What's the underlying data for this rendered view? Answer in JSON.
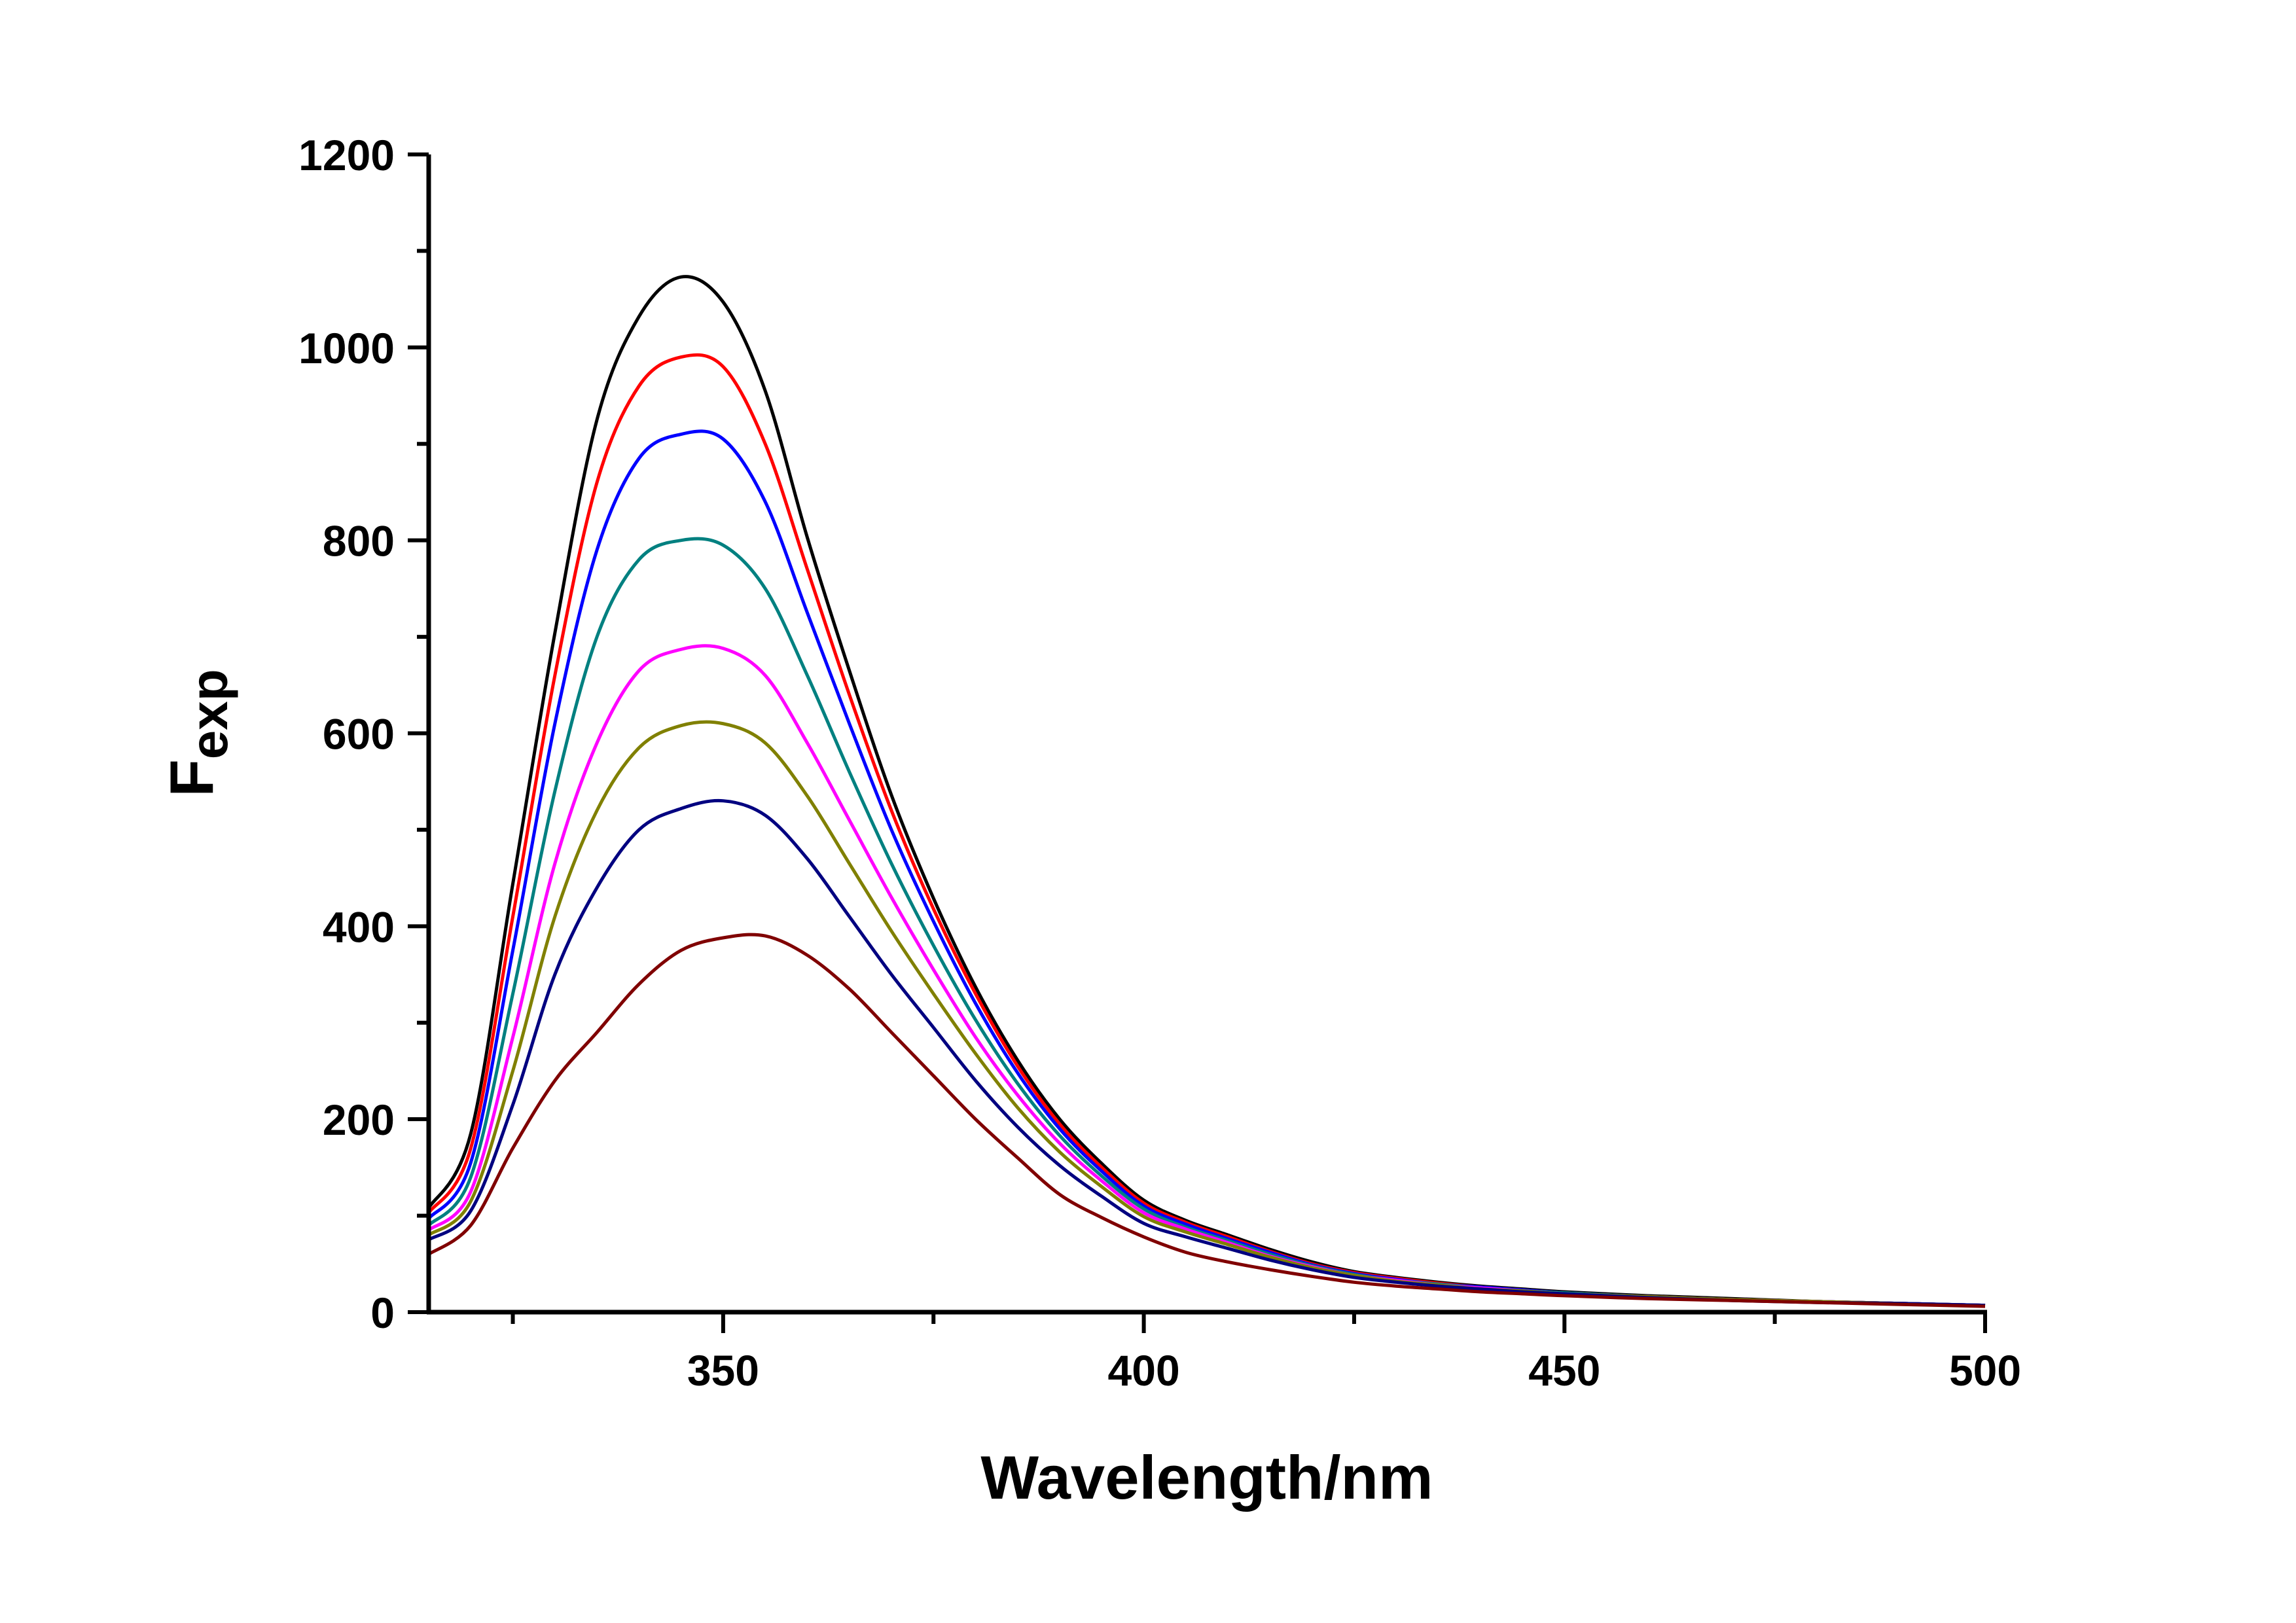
{
  "chart_data": {
    "type": "line",
    "title": "",
    "xlabel": "Wavelength/nm",
    "ylabel": "F",
    "ylabel_subscript": "exp",
    "xlim": [
      315,
      500
    ],
    "ylim": [
      0,
      1200
    ],
    "xticks": [
      350,
      400,
      450,
      500
    ],
    "xticks_minor": [
      325,
      375,
      425,
      475
    ],
    "yticks": [
      0,
      200,
      400,
      600,
      800,
      1000,
      1200
    ],
    "yticks_minor": [
      100,
      300,
      500,
      700,
      900,
      1100
    ],
    "grid": false,
    "legend": "none",
    "x": [
      315,
      320,
      325,
      330,
      335,
      340,
      345,
      350,
      355,
      360,
      365,
      370,
      375,
      380,
      385,
      390,
      395,
      400,
      405,
      410,
      415,
      420,
      425,
      430,
      435,
      440,
      445,
      450,
      460,
      470,
      480,
      490,
      500
    ],
    "series": [
      {
        "color": "#000000",
        "values": [
          108,
          185,
          444,
          704,
          925,
          1032,
          1073,
          1047,
          955,
          803,
          665,
          536,
          429,
          337,
          261,
          200,
          154,
          116,
          95,
          80,
          65,
          52,
          42,
          36,
          31,
          27,
          24,
          21,
          17,
          14,
          11,
          9,
          7
        ]
      },
      {
        "color": "#ff0000",
        "values": [
          103,
          170,
          410,
          660,
          860,
          960,
          990,
          980,
          900,
          770,
          640,
          520,
          418,
          330,
          255,
          195,
          150,
          113,
          93,
          78,
          63,
          50,
          41,
          35,
          30,
          26,
          23,
          20,
          16,
          13,
          11,
          9,
          7
        ]
      },
      {
        "color": "#0000ff",
        "values": [
          97,
          155,
          375,
          610,
          790,
          885,
          910,
          905,
          840,
          725,
          610,
          500,
          405,
          320,
          248,
          190,
          146,
          110,
          91,
          76,
          62,
          49,
          40,
          34,
          29,
          26,
          23,
          20,
          16,
          13,
          11,
          9,
          7
        ]
      },
      {
        "color": "#008080",
        "values": [
          90,
          140,
          330,
          540,
          700,
          780,
          800,
          795,
          750,
          660,
          560,
          465,
          380,
          303,
          237,
          183,
          141,
          107,
          88,
          74,
          60,
          48,
          39,
          33,
          29,
          25,
          22,
          20,
          16,
          13,
          11,
          9,
          7
        ]
      },
      {
        "color": "#ff00ff",
        "values": [
          85,
          125,
          285,
          465,
          590,
          665,
          687,
          688,
          660,
          590,
          510,
          430,
          355,
          285,
          225,
          175,
          136,
          103,
          86,
          72,
          58,
          47,
          38,
          33,
          28,
          25,
          22,
          19,
          16,
          13,
          11,
          9,
          7
        ]
      },
      {
        "color": "#808000",
        "values": [
          80,
          115,
          250,
          410,
          520,
          585,
          608,
          610,
          590,
          535,
          465,
          395,
          330,
          268,
          212,
          166,
          130,
          99,
          83,
          70,
          57,
          46,
          38,
          32,
          28,
          24,
          22,
          19,
          16,
          13,
          11,
          9,
          7
        ]
      },
      {
        "color": "#000080",
        "values": [
          75,
          105,
          215,
          350,
          440,
          500,
          522,
          530,
          515,
          470,
          410,
          350,
          295,
          240,
          192,
          152,
          120,
          92,
          78,
          66,
          54,
          44,
          36,
          31,
          27,
          24,
          21,
          19,
          15,
          12,
          10,
          9,
          7
        ]
      },
      {
        "color": "#800000",
        "values": [
          60,
          90,
          170,
          240,
          290,
          340,
          375,
          388,
          390,
          370,
          335,
          290,
          245,
          200,
          160,
          122,
          98,
          78,
          62,
          52,
          44,
          37,
          31,
          27,
          24,
          21,
          19,
          17,
          14,
          12,
          10,
          8,
          6
        ]
      }
    ]
  }
}
